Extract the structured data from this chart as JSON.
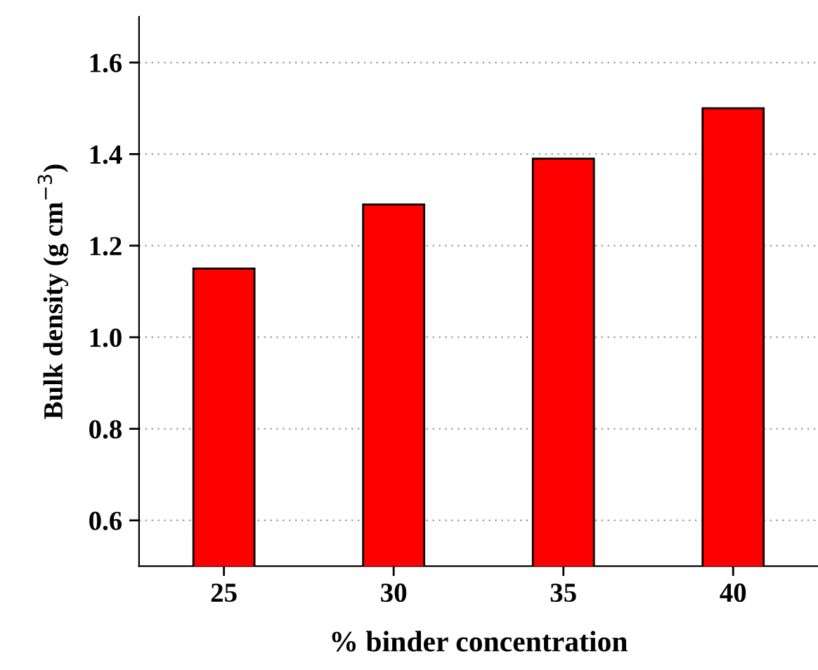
{
  "chart_data": {
    "type": "bar",
    "xlabel": "% binder concentration",
    "ylabel": "Bulk density (g cm$^{−3}$)",
    "categories": [
      "25",
      "30",
      "35",
      "40"
    ],
    "values": [
      1.15,
      1.29,
      1.39,
      1.5
    ],
    "color": "#ff0000",
    "ylim": [
      0.5,
      1.7
    ],
    "yticks": [
      {
        "value": 0.6,
        "label": "0.6"
      },
      {
        "value": 0.8,
        "label": "0.8"
      },
      {
        "value": 1.0,
        "label": "1.0"
      },
      {
        "value": 1.2,
        "label": "1.2"
      },
      {
        "value": 1.4,
        "label": "1.4"
      },
      {
        "value": 1.6,
        "label": "1.6"
      }
    ],
    "grid": "y"
  }
}
